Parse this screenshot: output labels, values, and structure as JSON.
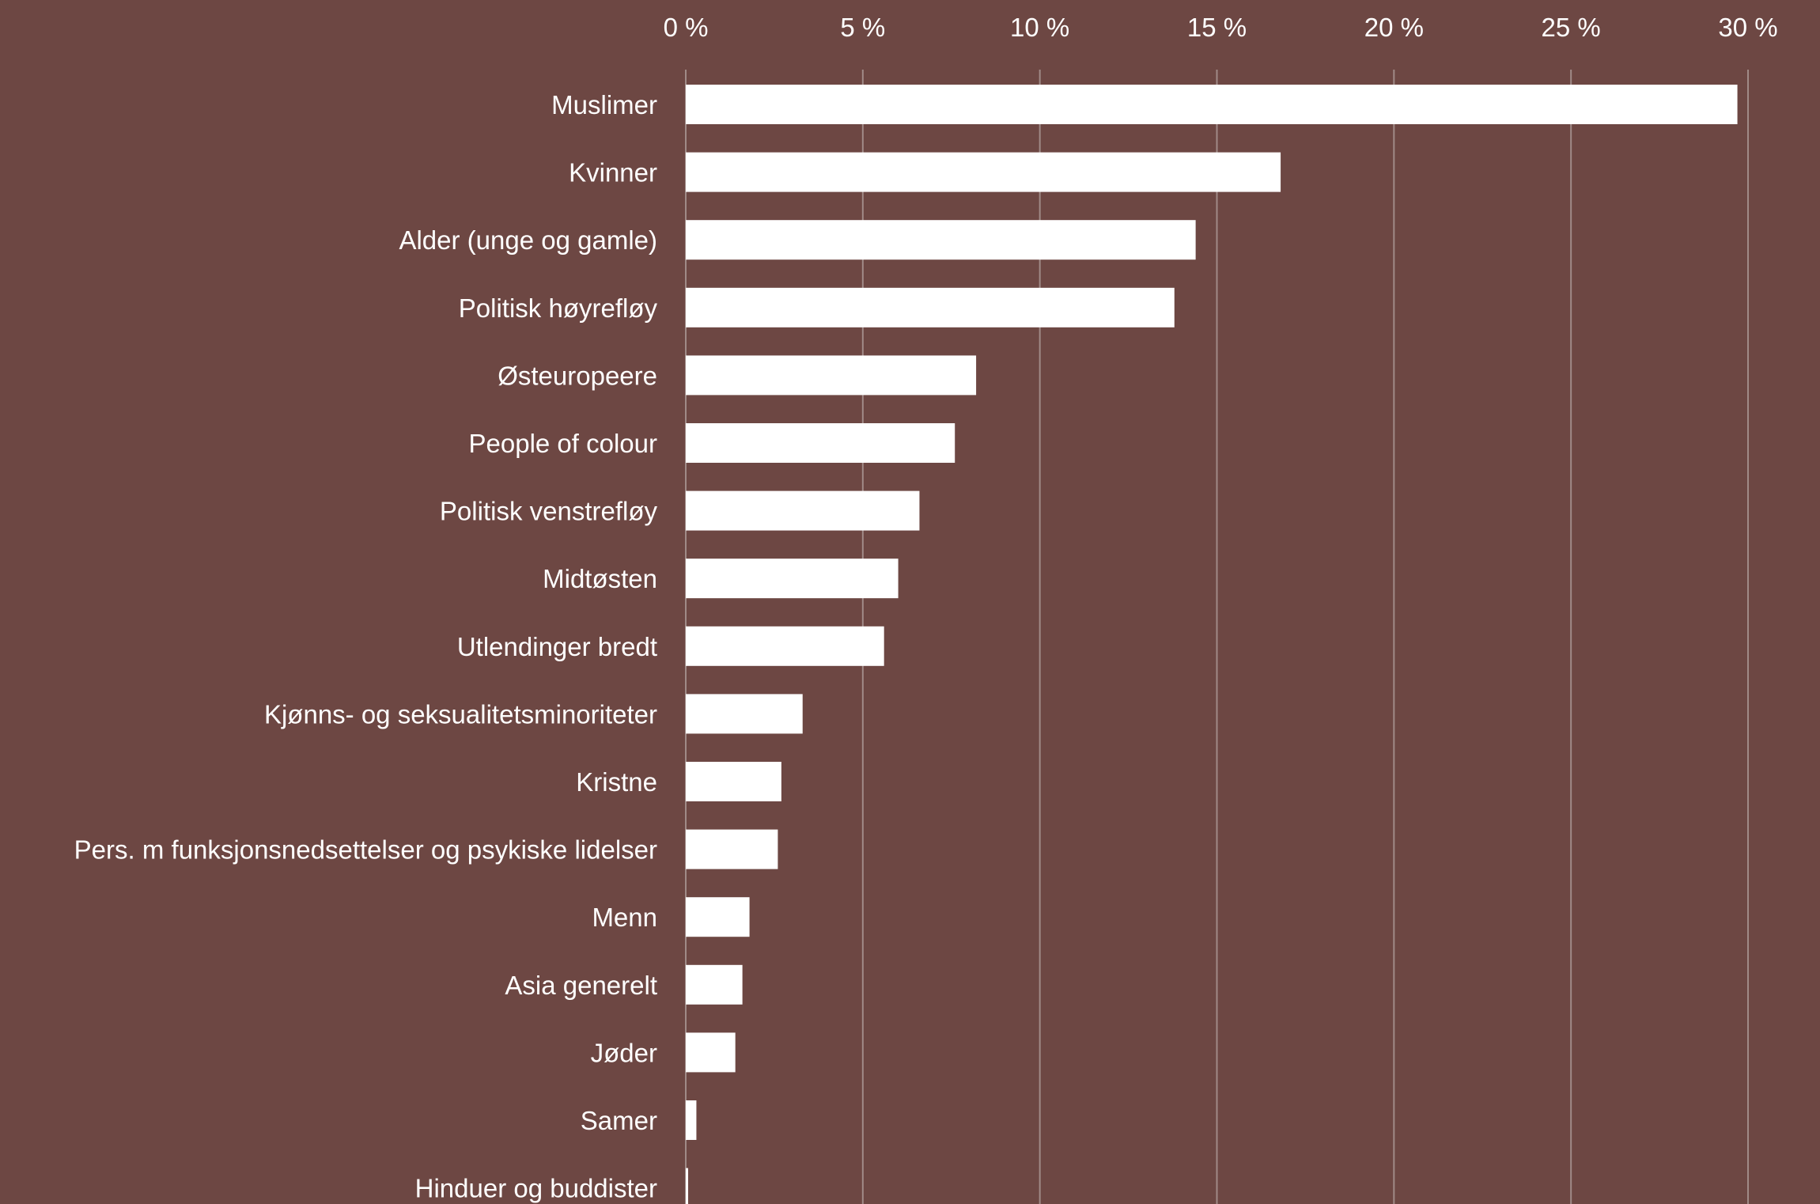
{
  "chart_data": {
    "type": "bar",
    "orientation": "horizontal",
    "title": "",
    "xlabel": "",
    "ylabel": "",
    "xlim": [
      0,
      30
    ],
    "x_ticks": [
      0,
      5,
      10,
      15,
      20,
      25,
      30
    ],
    "x_tick_labels": [
      "0 %",
      "5 %",
      "10 %",
      "15 %",
      "20 %",
      "25 %",
      "30 %"
    ],
    "x_axis_position": "top",
    "grid": true,
    "legend": "none",
    "bar_color": "#ffffff",
    "background_color": "#6d4743",
    "gridline_color": "#a08a87",
    "text_color": "#ffffff",
    "categories": [
      "Muslimer",
      "Kvinner",
      "Alder (unge og gamle)",
      "Politisk høyrefløy",
      "Østeuropeere",
      "People of colour",
      "Politisk venstrefløy",
      "Midtøsten",
      "Utlendinger bredt",
      "Kjønns- og seksualitetsminoriteter",
      "Kristne",
      "Pers. m funksjonsnedsettelser og psykiske lidelser",
      "Menn",
      "Asia generelt",
      "Jøder",
      "Samer",
      "Hinduer og buddister"
    ],
    "values": [
      29.7,
      16.8,
      14.4,
      13.8,
      8.2,
      7.6,
      6.6,
      6.0,
      5.6,
      3.3,
      2.7,
      2.6,
      1.8,
      1.6,
      1.4,
      0.3,
      0.05
    ]
  }
}
